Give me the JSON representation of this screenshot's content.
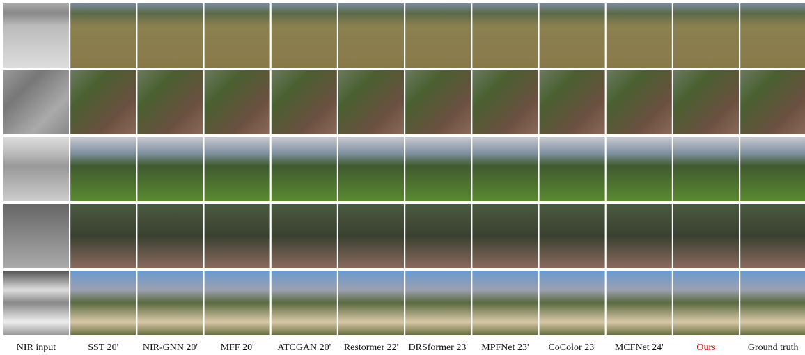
{
  "columns": [
    "NIR input",
    "SST 20'",
    "NIR-GNN 20'",
    "MFF 20'",
    "ATCGAN 20'",
    "Restormer 22'",
    "DRSformer 23'",
    "MPFNet 23'",
    "CoColor 23'",
    "MCFNet 24'",
    "Ours",
    "Ground truth"
  ],
  "highlight": {
    "column": 10,
    "color": "#e00000"
  }
}
